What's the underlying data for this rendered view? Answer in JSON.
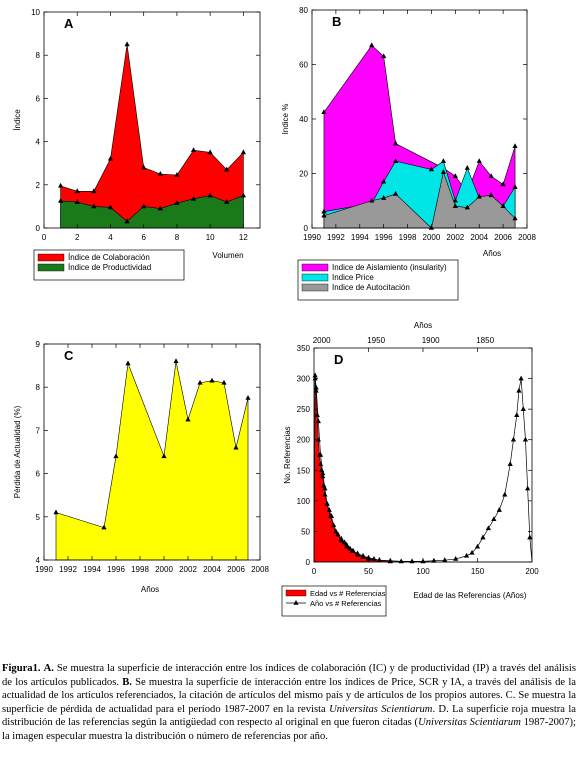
{
  "chart_data": [
    {
      "type": "area",
      "panel_label": "A",
      "xlabel": "Volumen",
      "ylabel": "Índice",
      "xlim": [
        0,
        13
      ],
      "ylim": [
        0,
        10
      ],
      "xticks": [
        0,
        2,
        4,
        6,
        8,
        10,
        12
      ],
      "yticks": [
        0,
        2,
        4,
        6,
        8,
        10
      ],
      "x": [
        1,
        2,
        3,
        4,
        5,
        6,
        7,
        8,
        9,
        10,
        11,
        12
      ],
      "series": [
        {
          "name": "Índice de Colaboración",
          "color": "#ff0000",
          "values": [
            1.95,
            1.7,
            1.7,
            3.2,
            8.5,
            2.8,
            2.5,
            2.45,
            3.6,
            3.5,
            2.7,
            3.5
          ]
        },
        {
          "name": "Índice de Productividad",
          "color": "#1a7a1a",
          "values": [
            1.25,
            1.2,
            1.0,
            0.95,
            0.3,
            1.0,
            0.9,
            1.15,
            1.35,
            1.5,
            1.2,
            1.5
          ]
        }
      ],
      "legend": "below"
    },
    {
      "type": "area",
      "panel_label": "B",
      "xlabel": "Años",
      "ylabel": "Indice %",
      "xlim": [
        1990,
        2008
      ],
      "ylim": [
        0,
        80
      ],
      "xticks": [
        1990,
        1992,
        1994,
        1996,
        1998,
        2000,
        2002,
        2004,
        2006,
        2008
      ],
      "yticks": [
        0,
        20,
        40,
        60,
        80
      ],
      "series": [
        {
          "name": "Indice de Aislamiento (insularity)",
          "color": "#ff00ff",
          "x": [
            1991,
            1995,
            1996,
            1997,
            2001,
            2002,
            2003,
            2004,
            2005,
            2006,
            2007
          ],
          "values": [
            42.5,
            67,
            63,
            31,
            22,
            19,
            13,
            24.5,
            19,
            16,
            30
          ]
        },
        {
          "name": "Indice Price",
          "color": "#00e5e5",
          "x": [
            1991,
            1995,
            1996,
            1997,
            2000,
            2001,
            2002,
            2003,
            2004,
            2005,
            2006,
            2007
          ],
          "values": [
            6,
            9,
            17,
            24.5,
            21.5,
            24.5,
            10,
            22,
            11,
            12,
            8,
            15
          ]
        },
        {
          "name": "Indice de Autocitación",
          "color": "#999999",
          "x": [
            1991,
            1995,
            1996,
            1997,
            2000,
            2001,
            2002,
            2003,
            2004,
            2005,
            2006,
            2007
          ],
          "values": [
            4.5,
            10,
            11,
            12.5,
            0,
            20.5,
            8,
            7.5,
            11.5,
            12,
            8,
            3.5
          ]
        }
      ],
      "legend": "below"
    },
    {
      "type": "area",
      "panel_label": "C",
      "xlabel": "Años",
      "ylabel": "Pérdida de Actualidad (%)",
      "xlim": [
        1990,
        2008
      ],
      "ylim": [
        4,
        9
      ],
      "xticks": [
        1990,
        1992,
        1994,
        1996,
        1998,
        2000,
        2002,
        2004,
        2006,
        2008
      ],
      "yticks": [
        4,
        5,
        6,
        7,
        8,
        9
      ],
      "series": [
        {
          "name": "",
          "color": "#ffff00",
          "x": [
            1991,
            1995,
            1996,
            1997,
            2000,
            2001,
            2002,
            2003,
            2004,
            2005,
            2006,
            2007
          ],
          "values": [
            5.1,
            4.75,
            6.4,
            8.55,
            6.4,
            8.6,
            7.25,
            8.1,
            8.15,
            8.1,
            6.6,
            7.75
          ]
        }
      ]
    },
    {
      "type": "area",
      "panel_label": "D",
      "xlabel": "Edad de las Referencias (Años)",
      "ylabel": "No. Referencias",
      "x2label": "Años",
      "xlim": [
        0,
        200
      ],
      "ylim": [
        0,
        350
      ],
      "xticks": [
        0,
        50,
        100,
        150,
        200
      ],
      "yticks": [
        0,
        50,
        100,
        150,
        200,
        250,
        300,
        350
      ],
      "x2ticks": [
        1850,
        1900,
        1950,
        2000
      ],
      "series": [
        {
          "name": "Edad vs # Referencias",
          "color": "#ff0000",
          "x": [
            0,
            1,
            2,
            3,
            4,
            5,
            6,
            7,
            8,
            9,
            10,
            12,
            14,
            16,
            18,
            20,
            22,
            25,
            28,
            30,
            33,
            36,
            40,
            45,
            50,
            55,
            60,
            70,
            80,
            100,
            120,
            140,
            160,
            180,
            195,
            200
          ],
          "values": [
            0,
            300,
            280,
            240,
            200,
            175,
            160,
            150,
            140,
            125,
            110,
            95,
            85,
            75,
            60,
            50,
            45,
            38,
            32,
            28,
            22,
            18,
            14,
            10,
            7,
            5,
            3,
            1,
            0,
            0,
            0,
            0,
            0,
            0,
            0,
            0
          ]
        },
        {
          "name": "Año vs # Referencias",
          "color": "#000000",
          "x": [
            0,
            1,
            2,
            4,
            6,
            8,
            10,
            12,
            15,
            20,
            25,
            30,
            35,
            40,
            45,
            50,
            60,
            70,
            80,
            90,
            100,
            110,
            120,
            130,
            140,
            145,
            150,
            155,
            160,
            165,
            170,
            175,
            180,
            183,
            186,
            188,
            190,
            192,
            194,
            196,
            198,
            200
          ],
          "values": [
            0,
            305,
            285,
            230,
            175,
            145,
            120,
            95,
            75,
            50,
            35,
            25,
            18,
            12,
            8,
            5,
            3,
            2,
            1,
            1,
            1,
            2,
            3,
            5,
            10,
            15,
            25,
            40,
            55,
            70,
            85,
            110,
            160,
            200,
            240,
            280,
            300,
            250,
            200,
            120,
            40,
            0
          ]
        }
      ],
      "legend": "below"
    }
  ],
  "caption": {
    "lead": "Figura1.",
    "a_label": "A.",
    "a_text": "Se muestra la superficie de interacción entre los índices de colaboración (IC) y de productividad (IP) a través del análisis de los artículos publicados.",
    "b_label": "B.",
    "b_text": "Se muestra la superficie de interacción entre los índices de Price, SCR y IA, a través del análisis de la actualidad de los artículos referenciados, la citación de artículos del mismo país y de artículos de los propios autores. C. Se muestra la superficie de pérdida de actualidad para el período 1987-2007 en la revista",
    "journal": "Universitas Scientiarum",
    "d_text": ". D. La superficie roja muestra la distribución de las referencias según la antigüedad con respecto al original en que fueron citadas (",
    "journal_years": "Universitas Scientiarum",
    "d_years": "1987-2007); la imagen especular muestra la distribución o número de referencias por año."
  }
}
